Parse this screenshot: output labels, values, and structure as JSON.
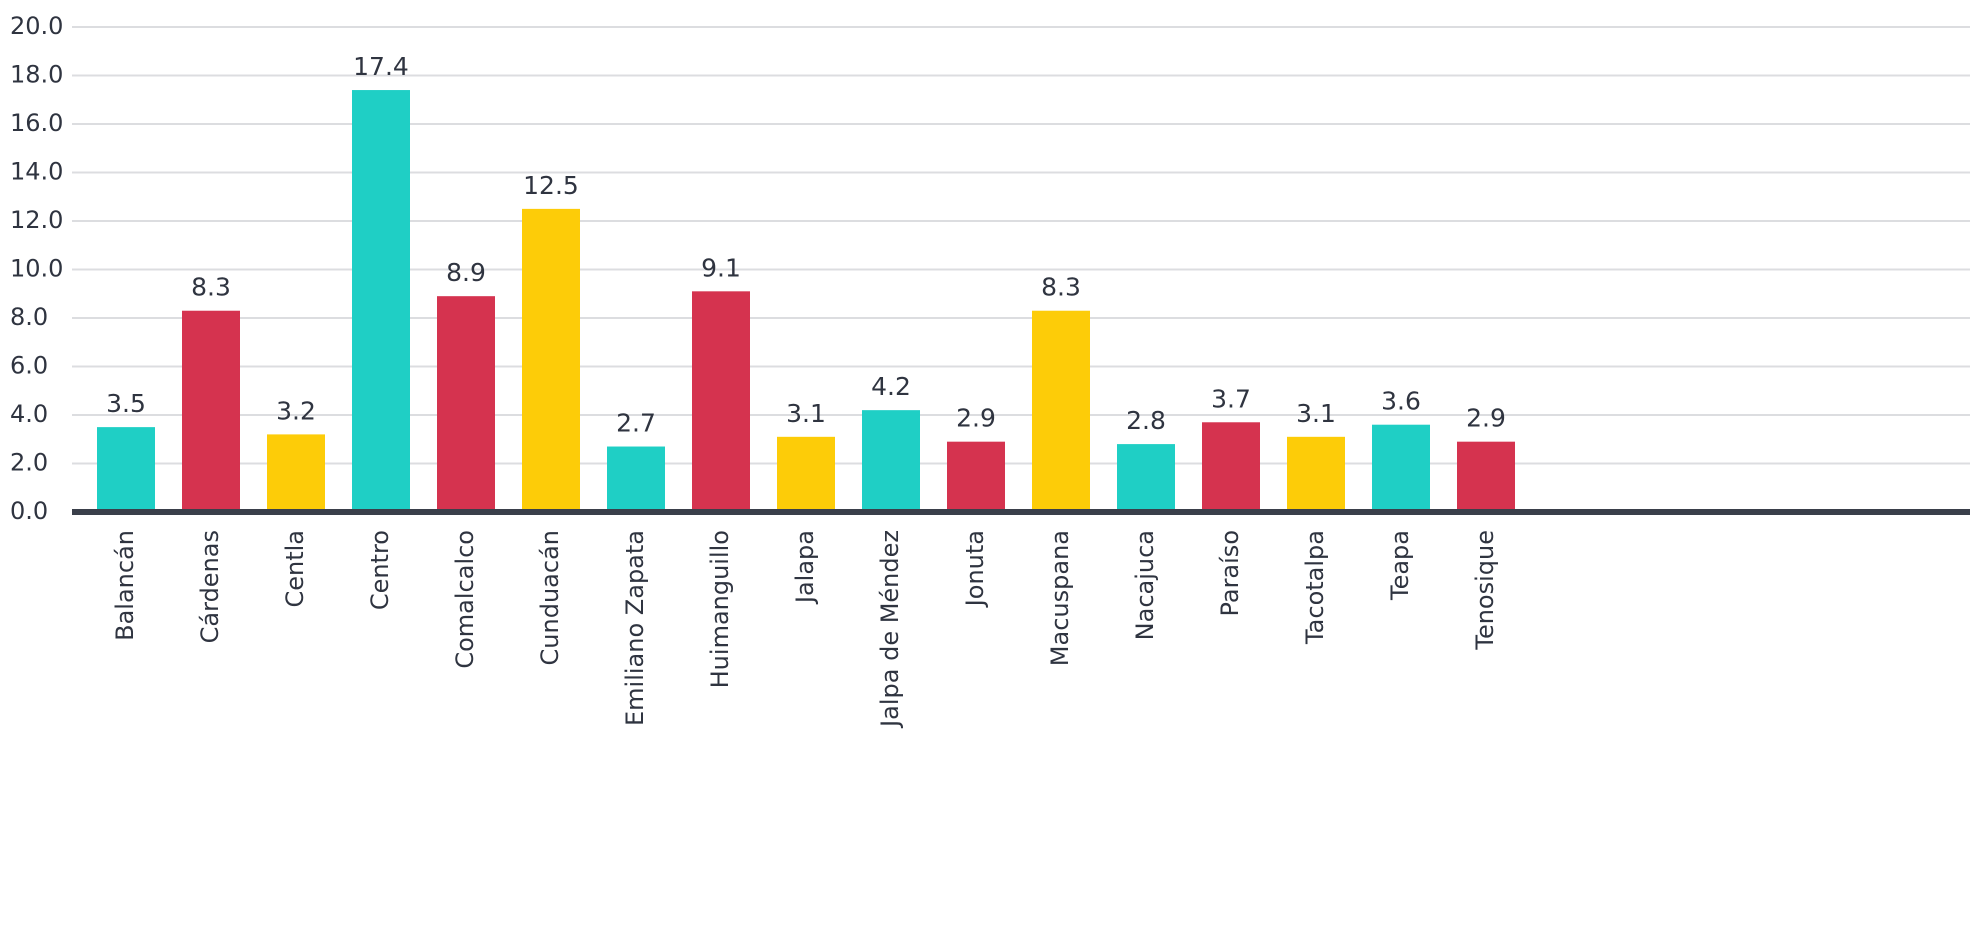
{
  "chart_data": {
    "type": "bar",
    "categories": [
      "Balancán",
      "Cárdenas",
      "Centla",
      "Centro",
      "Comalcalco",
      "Cunduacán",
      "Emiliano Zapata",
      "Huimanguillo",
      "Jalapa",
      "Jalpa de Méndez",
      "Jonuta",
      "Macuspana",
      "Nacajuca",
      "Paraíso",
      "Tacotalpa",
      "Teapa",
      "Tenosique"
    ],
    "values": [
      3.5,
      8.3,
      3.2,
      17.4,
      8.9,
      12.5,
      2.7,
      9.1,
      3.1,
      4.2,
      2.9,
      8.3,
      2.8,
      3.7,
      3.1,
      3.6,
      2.9
    ],
    "value_labels": [
      "3.5",
      "8.3",
      "3.2",
      "17.4",
      "8.9",
      "12.5",
      "2.7",
      "9.1",
      "3.1",
      "4.2",
      "2.9",
      "8.3",
      "2.8",
      "3.7",
      "3.1",
      "3.6",
      "2.9"
    ],
    "colors": [
      "#1fcfc5",
      "#d5334f",
      "#fdcc08",
      "#1fcfc5",
      "#d5334f",
      "#fdcc08",
      "#1fcfc5",
      "#d5334f",
      "#fdcc08",
      "#1fcfc5",
      "#d5334f",
      "#fdcc08",
      "#1fcfc5",
      "#d5334f",
      "#fdcc08",
      "#1fcfc5",
      "#d5334f"
    ],
    "ylim": [
      0,
      20
    ],
    "yticks": [
      {
        "value": 0,
        "label": "0.0"
      },
      {
        "value": 2,
        "label": "2.0"
      },
      {
        "value": 4,
        "label": "4.0"
      },
      {
        "value": 6,
        "label": "6.0"
      },
      {
        "value": 8,
        "label": "8.0"
      },
      {
        "value": 10,
        "label": "10.0"
      },
      {
        "value": 12,
        "label": "12.0"
      },
      {
        "value": 14,
        "label": "14.0"
      },
      {
        "value": 16,
        "label": "16.0"
      },
      {
        "value": 18,
        "label": "18.0"
      },
      {
        "value": 20,
        "label": "20.0"
      }
    ],
    "grid": true
  }
}
